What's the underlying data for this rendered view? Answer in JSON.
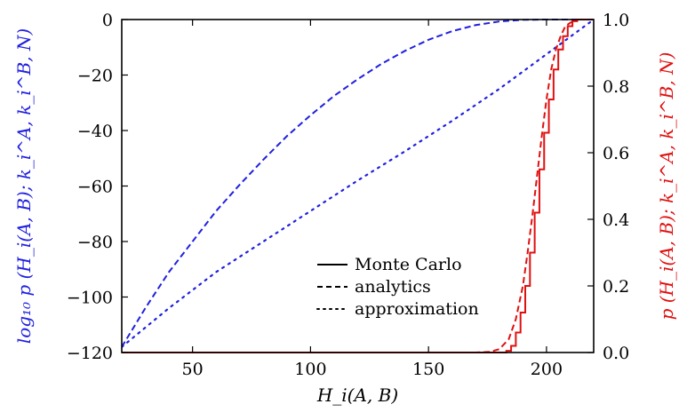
{
  "chart_data": {
    "type": "line",
    "title": "",
    "xlabel": "H_i(A, B)",
    "ylabel_left": "log₁₀ p (H_i(A, B); k_i^A, k_i^B, N)",
    "ylabel_right": "p (H_i(A, B); k_i^A, k_i^B, N)",
    "xlim": [
      20,
      220
    ],
    "ylim_left": [
      -120,
      0
    ],
    "ylim_right": [
      0,
      1
    ],
    "x_ticks": [
      50,
      100,
      150,
      200
    ],
    "y_ticks_left": [
      0,
      -20,
      -40,
      -60,
      -80,
      -100,
      -120
    ],
    "y_ticks_right": [
      0.0,
      0.2,
      0.4,
      0.6,
      0.8,
      1.0
    ],
    "x_tick_labels": [
      "50",
      "100",
      "150",
      "200"
    ],
    "y_tick_labels_left": [
      "0",
      "−20",
      "−40",
      "−60",
      "−80",
      "−100",
      "−120"
    ],
    "y_tick_labels_right": [
      "0.0",
      "0.2",
      "0.4",
      "0.6",
      "0.8",
      "1.0"
    ],
    "left_color": "#2020e0",
    "right_color": "#e01010",
    "legend": {
      "location": "lower-right",
      "entries": [
        {
          "label": "Monte Carlo",
          "style": "solid"
        },
        {
          "label": "analytics",
          "style": "dashed"
        },
        {
          "label": "approximation",
          "style": "dotted"
        }
      ]
    },
    "series": [
      {
        "axis": "left",
        "color": "#2020e0",
        "style": "dashed",
        "legend_ref": "analytics",
        "x": [
          20,
          30,
          40,
          50,
          60,
          70,
          80,
          90,
          100,
          110,
          120,
          130,
          140,
          150,
          160,
          170,
          180,
          190,
          200,
          210,
          220
        ],
        "y": [
          -118,
          -104,
          -91,
          -80,
          -69,
          -59.5,
          -50.5,
          -42,
          -34.5,
          -27.5,
          -21.5,
          -16,
          -11.3,
          -7.3,
          -4.2,
          -2,
          -0.7,
          -0.1,
          0,
          0,
          0
        ]
      },
      {
        "axis": "left",
        "color": "#2020e0",
        "style": "dotted",
        "legend_ref": "approximation",
        "x": [
          20,
          40,
          60,
          80,
          100,
          120,
          140,
          160,
          180,
          200,
          220
        ],
        "y": [
          -118,
          -104,
          -91,
          -80,
          -69,
          -58,
          -47.5,
          -36.5,
          -25,
          -12.5,
          0
        ]
      },
      {
        "axis": "right",
        "color": "#e01010",
        "style": "dashed",
        "legend_ref": "analytics",
        "x": [
          20,
          170,
          176,
          180,
          184,
          187,
          190,
          192,
          194,
          196,
          198,
          200,
          202,
          204,
          206,
          208,
          210,
          213,
          216,
          220
        ],
        "y": [
          0,
          0,
          0.002,
          0.01,
          0.04,
          0.1,
          0.2,
          0.3,
          0.41,
          0.53,
          0.65,
          0.76,
          0.85,
          0.91,
          0.95,
          0.98,
          0.99,
          1.0,
          1.0,
          1.0
        ]
      },
      {
        "axis": "right",
        "color": "#e01010",
        "style": "solid",
        "legend_ref": "Monte Carlo",
        "x": [
          20,
          181,
          183,
          185,
          187,
          189,
          191,
          193,
          195,
          197,
          199,
          201,
          203,
          205,
          207,
          209,
          211,
          213,
          215,
          220
        ],
        "y": [
          0,
          0,
          0.005,
          0.02,
          0.06,
          0.12,
          0.2,
          0.3,
          0.42,
          0.55,
          0.66,
          0.76,
          0.85,
          0.91,
          0.95,
          0.98,
          0.995,
          1.0,
          1.0,
          1.0
        ]
      }
    ]
  }
}
